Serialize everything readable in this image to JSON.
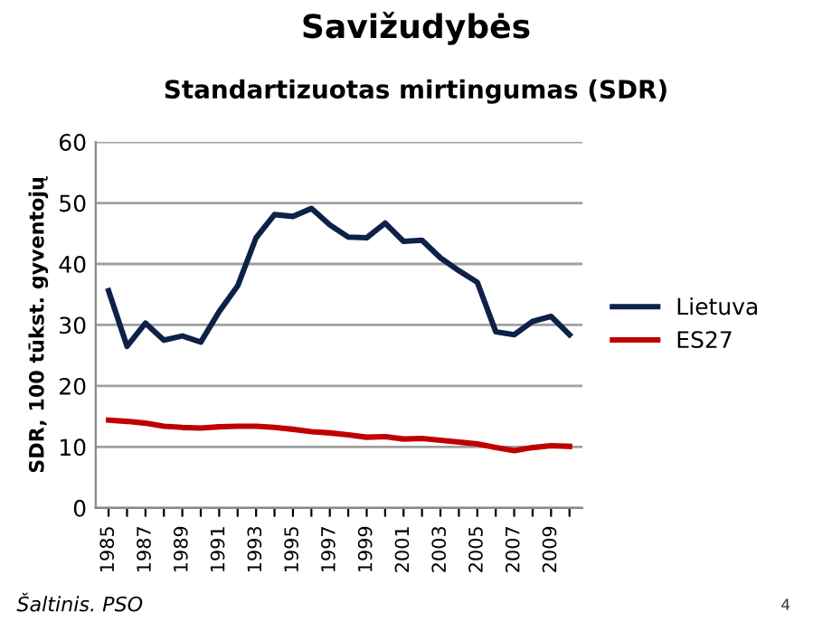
{
  "chart_data": {
    "type": "line",
    "title": "Savižudybės",
    "subtitle": "Standartizuotas mirtingumas (SDR)",
    "ylabel": "SDR, 100 tūkst. gyventojų",
    "categories": [
      "1985",
      null,
      "1987",
      null,
      "1989",
      null,
      "1991",
      null,
      "1993",
      null,
      "1995",
      null,
      "1997",
      null,
      "1999",
      null,
      "2001",
      null,
      "2003",
      null,
      "2005",
      null,
      "2007",
      null,
      "2009",
      null
    ],
    "series": [
      {
        "name": "Lietuva",
        "color": "#0d2149",
        "values": [
          35.6,
          26.5,
          30.3,
          27.5,
          28.2,
          27.2,
          32.2,
          36.4,
          44.3,
          48.1,
          47.8,
          49.1,
          46.4,
          44.4,
          44.3,
          46.7,
          43.7,
          43.9,
          41.0,
          38.9,
          37.0,
          28.9,
          28.4,
          30.6,
          31.4,
          28.4
        ]
      },
      {
        "name": "ES27",
        "color": "#c00000",
        "values": [
          14.4,
          14.2,
          13.9,
          13.4,
          13.2,
          13.1,
          13.3,
          13.4,
          13.4,
          13.2,
          12.9,
          12.5,
          12.3,
          12.0,
          11.6,
          11.7,
          11.3,
          11.4,
          11.1,
          10.8,
          10.5,
          9.9,
          9.4,
          9.9,
          10.2,
          10.1
        ]
      }
    ],
    "ylim": [
      0,
      60
    ],
    "yticks": [
      0,
      10,
      20,
      30,
      40,
      50,
      60
    ],
    "grid": "y",
    "legend": "right",
    "marker": "none",
    "line_style": "solid",
    "annotations": [
      "Šaltinis. PSO",
      "4"
    ]
  }
}
